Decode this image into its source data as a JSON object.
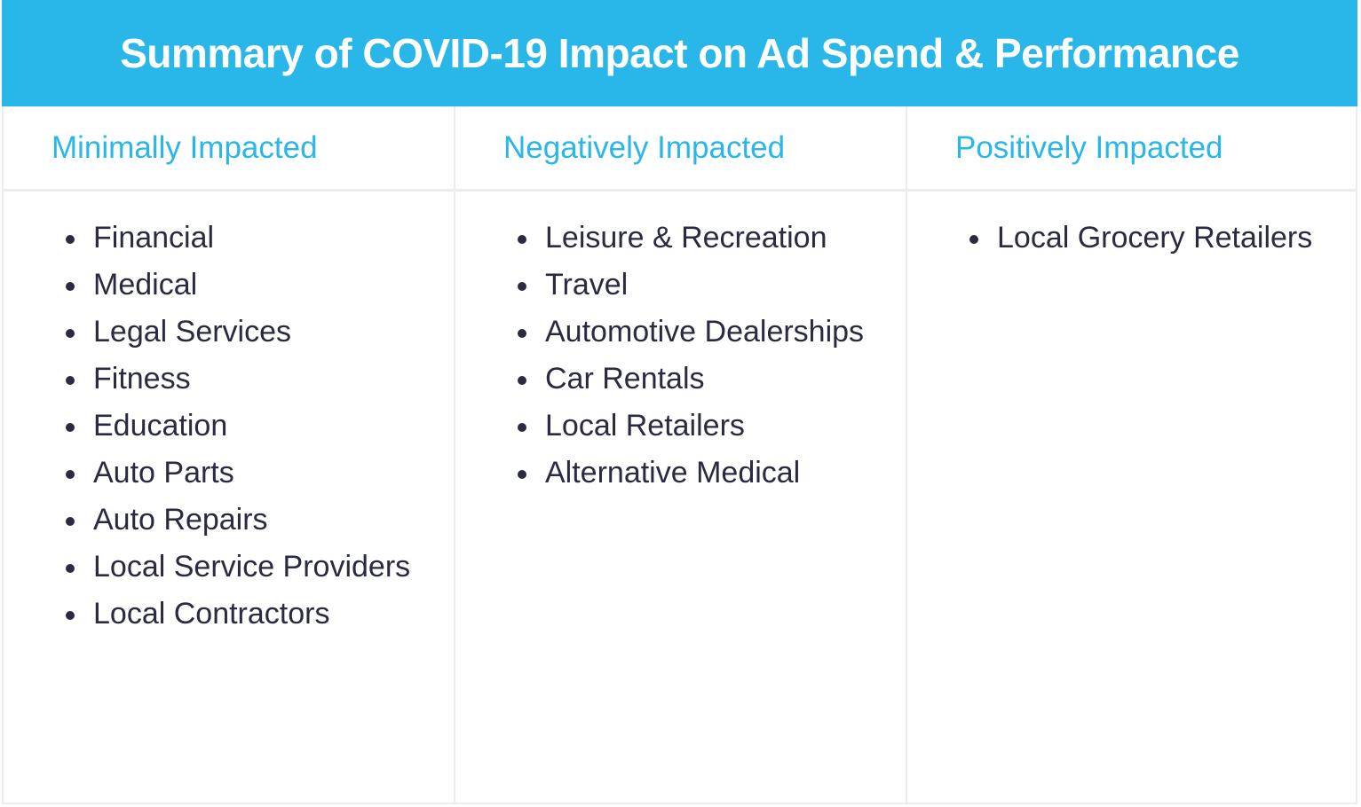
{
  "title": "Summary of COVID-19 Impact on Ad Spend & Performance",
  "colors": {
    "accent": "#29b6e8",
    "text": "#2a2a40",
    "border": "#ececec"
  },
  "columns": [
    {
      "heading": "Minimally Impacted",
      "items": [
        "Financial",
        "Medical",
        "Legal Services",
        "Fitness",
        "Education",
        "Auto Parts",
        "Auto Repairs",
        "Local Service Providers",
        "Local Contractors"
      ]
    },
    {
      "heading": "Negatively Impacted",
      "items": [
        "Leisure & Recreation",
        "Travel",
        "Automotive Dealerships",
        "Car Rentals",
        "Local Retailers",
        "Alternative Medical"
      ]
    },
    {
      "heading": "Positively Impacted",
      "items": [
        "Local Grocery Retailers"
      ]
    }
  ]
}
